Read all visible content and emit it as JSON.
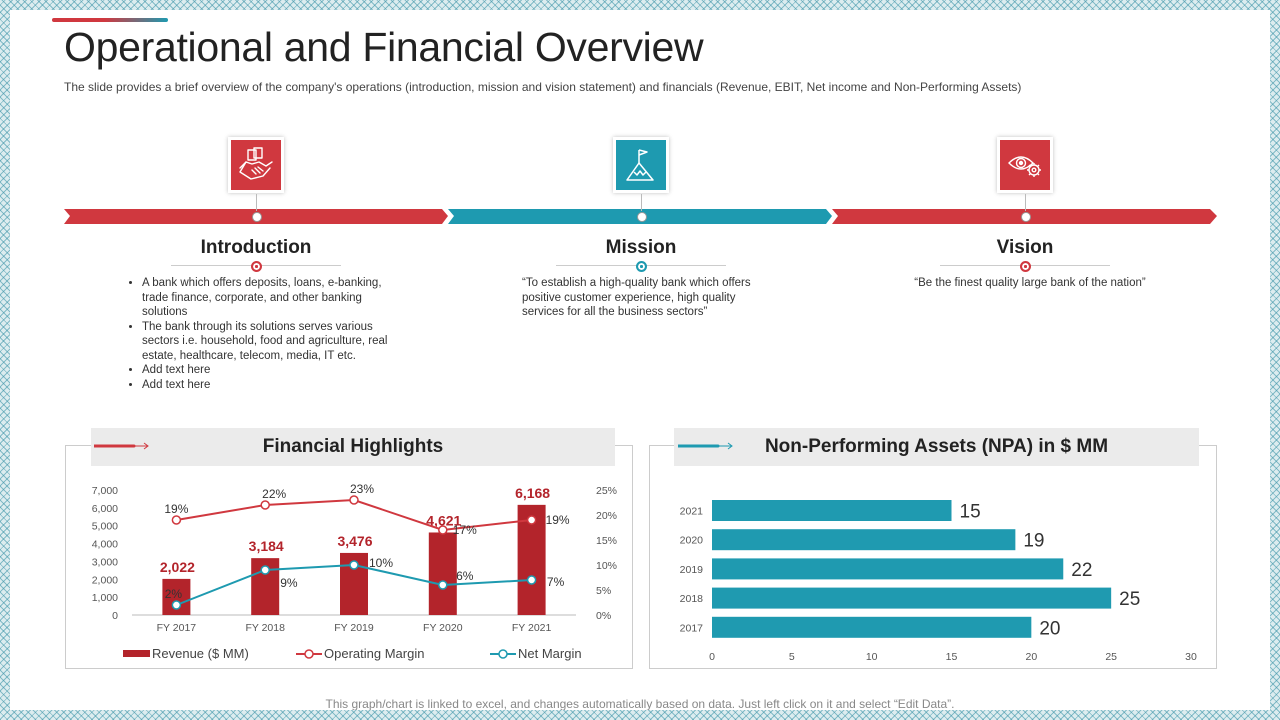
{
  "title": "Operational and Financial Overview",
  "subtitle": "The slide provides  a brief overview  of the company's operations (introduction,  mission and vision statement) and financials (Revenue,  EBIT, Net income and Non-Performing  Assets)",
  "colors": {
    "red": "#d0383f",
    "teal": "#1e9ab0",
    "bar_red": "#b3242b",
    "npa_teal": "#1f9ab0"
  },
  "sections": {
    "introduction": {
      "heading": "Introduction",
      "icon": "handshake-icon",
      "bullets": [
        "A bank which offers deposits, loans, e-banking, trade finance, corporate, and other banking solutions",
        "The bank through its solutions serves various sectors i.e. household, food and agriculture, real estate, healthcare, telecom, media, IT etc.",
        "Add text here",
        "Add text here"
      ]
    },
    "mission": {
      "heading": "Mission",
      "icon": "mountain-flag-icon",
      "text": "“To establish a high-quality bank which offers positive customer experience, high quality services for all the business sectors”"
    },
    "vision": {
      "heading": "Vision",
      "icon": "eye-gear-icon",
      "text": "“Be the finest quality large bank of the nation”"
    }
  },
  "financial_panel": {
    "title": "Financial Highlights"
  },
  "npa_panel": {
    "title": "Non-Performing Assets (NPA) in $ MM"
  },
  "footer": "This graph/chart is linked to excel, and changes automatically based on data. Just left click on it and select “Edit Data”.",
  "chart_data": [
    {
      "type": "bar",
      "title": "Financial Highlights",
      "categories": [
        "FY 2017",
        "FY 2018",
        "FY 2019",
        "FY 2020",
        "FY 2021"
      ],
      "series": [
        {
          "name": "Revenue ($ MM)",
          "kind": "bar",
          "axis": "left",
          "values": [
            2022,
            3184,
            3476,
            4621,
            6168
          ],
          "labels": [
            "2,022",
            "3,184",
            "3,476",
            "4,621",
            "6,168"
          ]
        },
        {
          "name": "Operating Margin",
          "kind": "line",
          "axis": "right",
          "values": [
            19,
            22,
            23,
            17,
            19
          ],
          "labels": [
            "19%",
            "22%",
            "23%",
            "17%",
            "19%"
          ]
        },
        {
          "name": "Net Margin",
          "kind": "line",
          "axis": "right",
          "values": [
            2,
            9,
            10,
            6,
            7
          ],
          "labels": [
            "2%",
            "9%",
            "10%",
            "6%",
            "7%"
          ]
        }
      ],
      "ylim": [
        0,
        7000
      ],
      "yticks": [
        "7,000",
        "6,000",
        "5,000",
        "4,000",
        "3,000",
        "2,000",
        "1,000",
        "0"
      ],
      "y2lim": [
        0,
        25
      ],
      "y2ticks": [
        "25%",
        "20%",
        "15%",
        "10%",
        "5%",
        "0%"
      ],
      "legend": "bottom"
    },
    {
      "type": "bar",
      "orientation": "horizontal",
      "title": "Non-Performing Assets (NPA) in $ MM",
      "categories": [
        "2021",
        "2020",
        "2019",
        "2018",
        "2017"
      ],
      "values": [
        15,
        19,
        22,
        25,
        20
      ],
      "xlim": [
        0,
        30
      ],
      "xticks": [
        "0",
        "5",
        "10",
        "15",
        "20",
        "25",
        "30"
      ]
    }
  ]
}
